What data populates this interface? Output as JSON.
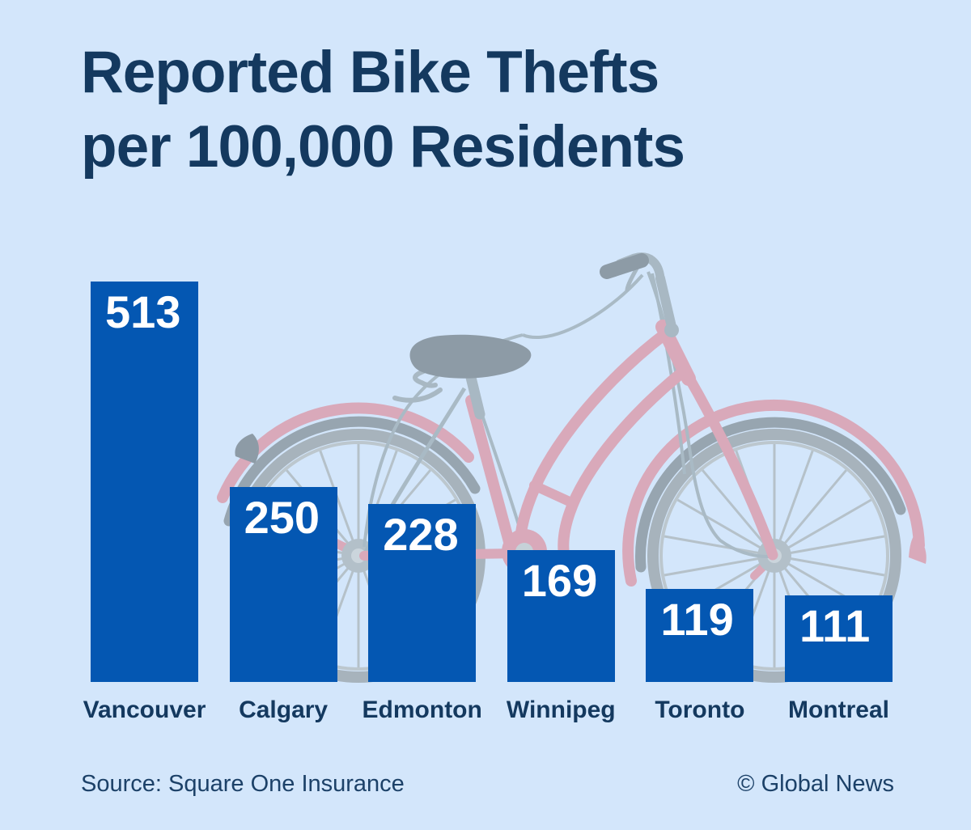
{
  "title": "Reported Bike Thefts\nper 100,000 Residents",
  "chart_data": {
    "type": "bar",
    "title": "Reported Bike Thefts per 100,000 Residents",
    "categories": [
      "Vancouver",
      "Calgary",
      "Edmonton",
      "Winnipeg",
      "Toronto",
      "Montreal"
    ],
    "values": [
      513,
      250,
      228,
      169,
      119,
      111
    ],
    "xlabel": "",
    "ylabel": "",
    "ylim": [
      0,
      513
    ],
    "grid": false,
    "legend": "none",
    "value_labels_position": "inside-top-left",
    "bar_color": "#0457B2",
    "value_label_color": "#FFFFFF",
    "category_label_color": "#14395F"
  },
  "footer": {
    "source": "Source: Square One Insurance",
    "credit": "© Global News"
  },
  "colors": {
    "background": "#D3E6FB",
    "bar": "#0457B2",
    "title_text": "#14395F",
    "footer_text": "#1C4168",
    "bike_pink": "#D9A9BA",
    "bike_tire_grey": "#A7B3BC",
    "bike_fender_grey": "#97A5B0",
    "bike_saddle_grey": "#8D9BA6"
  },
  "decorations": {
    "bicycle_illustration": "muted grey-and-pink step-through city bicycle behind bars"
  }
}
